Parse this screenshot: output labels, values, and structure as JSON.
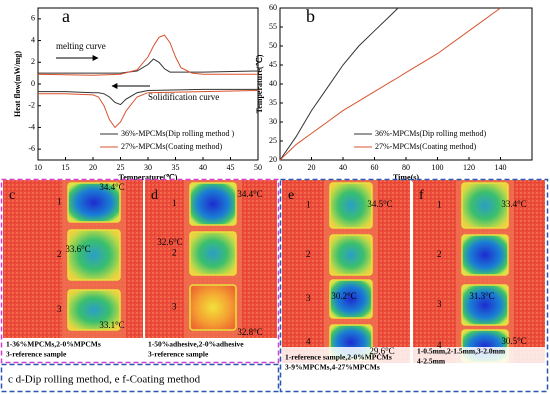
{
  "chart_data": [
    {
      "type": "line",
      "panel_label": "a",
      "x_label": "Temperature(℃)",
      "y_label": "Heat flow(mW/mg)",
      "annotations": [
        "melting curve",
        "Solidification curve"
      ],
      "x": [
        10,
        20,
        25,
        28,
        30,
        31,
        32,
        33,
        34,
        35,
        36,
        38,
        40,
        50,
        50,
        50,
        40,
        30,
        28,
        26,
        25,
        24,
        23,
        22,
        21,
        20,
        15,
        10
      ],
      "series": [
        {
          "name": "36%-MPCMs(Dip rolling method )",
          "color": "#333333",
          "values": [
            1.0,
            1.0,
            1.0,
            1.2,
            1.8,
            2.3,
            2.0,
            1.4,
            1.1,
            1.1,
            1.1,
            1.1,
            1.1,
            1.2,
            null,
            -0.5,
            -0.5,
            -0.6,
            -0.8,
            -1.4,
            -1.9,
            -1.7,
            -1.2,
            -0.9,
            -0.8,
            -0.8,
            -0.7,
            -0.7
          ]
        },
        {
          "name": "27%-MPCMs(Coating method)",
          "color": "#d9532f",
          "values": [
            0.9,
            0.8,
            0.9,
            1.3,
            2.5,
            3.5,
            4.3,
            4.5,
            3.8,
            2.5,
            1.5,
            1.0,
            0.9,
            0.9,
            null,
            -0.6,
            -0.7,
            -0.8,
            -1.2,
            -2.5,
            -3.5,
            -4.0,
            -3.3,
            -2.0,
            -1.2,
            -1.0,
            -0.9,
            -0.9
          ]
        }
      ],
      "xlim": [
        10,
        50
      ],
      "xticks": [
        10,
        15,
        20,
        25,
        30,
        35,
        40,
        45,
        50
      ],
      "ylim": [
        -7,
        7
      ],
      "yticks": [
        -6,
        -4,
        -2,
        0,
        2,
        4,
        6
      ],
      "legend": "lower left"
    },
    {
      "type": "line",
      "panel_label": "b",
      "x_label": "Time(s)",
      "y_label": "Temperature(℃)",
      "annotations": [],
      "x": [
        0,
        10,
        20,
        30,
        40,
        50,
        60,
        70,
        75,
        80,
        100,
        120,
        140
      ],
      "series": [
        {
          "name": "36%-MPCMs(Dip rolling method)",
          "color": "#333333",
          "values": [
            20,
            26,
            33,
            39,
            45,
            50,
            54,
            58,
            60,
            null,
            null,
            null,
            null
          ]
        },
        {
          "name": "27%-MPCMs(Coating method)",
          "color": "#d9532f",
          "values": [
            20,
            24,
            27,
            30,
            33,
            35.5,
            38,
            40.5,
            41.7,
            43,
            48,
            54,
            60
          ]
        }
      ],
      "xlim": [
        0,
        160
      ],
      "xticks": [
        0,
        20,
        40,
        60,
        80,
        100,
        120,
        140
      ],
      "ylim": [
        20,
        60
      ],
      "yticks": [
        20,
        25,
        30,
        35,
        40,
        45,
        50,
        55,
        60
      ],
      "legend": "lower right"
    }
  ],
  "thermal_images": [
    {
      "label": "c",
      "numbers": [
        "1",
        "2",
        "3"
      ],
      "temperatures": [
        "34.4°C",
        "33.6°C",
        "33.1°C"
      ],
      "caption": [
        "1-36%MPCMs,2-0%MPCMs",
        "3-reference sample"
      ]
    },
    {
      "label": "d",
      "numbers": [
        "1",
        "2",
        "3"
      ],
      "temperatures": [
        "34.4°C",
        "32.6°C",
        "32.8°C"
      ],
      "caption": [
        "1-50%adhesive,2-0%adhesive",
        "3-reference sample"
      ]
    },
    {
      "label": "e",
      "numbers": [
        "1",
        "2",
        "3",
        "4"
      ],
      "temperatures": [
        "34.5°C",
        "30.2°C",
        "29.6°C"
      ],
      "caption": [
        "1-reference sample,2-0%MPCMs",
        "3-9%MPCMs,4-27%MPCMs"
      ]
    },
    {
      "label": "f",
      "numbers": [
        "1",
        "2",
        "3",
        "4"
      ],
      "temperatures": [
        "33.4°C",
        "31.3°C",
        "30.5°C"
      ],
      "caption": [
        "1-0.5mm,2-1.5mm,3-2.0mm",
        "4-2.5mm"
      ]
    }
  ],
  "footer": "c  d-Dip rolling method, e  f-Coating method"
}
